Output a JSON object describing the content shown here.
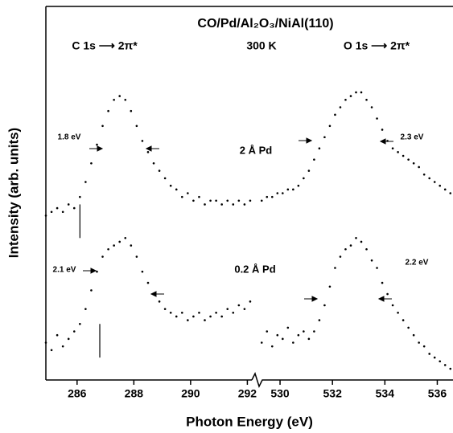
{
  "chart_data": {
    "type": "scatter",
    "title": "CO/Pd/Al₂O₃/NiAl(110)",
    "xlabel": "Photon Energy (eV)",
    "ylabel": "Intensity (arb. units)",
    "ylim": [
      0,
      100
    ],
    "annotations": [
      "C 1s ⟶ 2π*",
      "300 K",
      "O 1s ⟶ 2π*",
      "1.8 eV",
      "2 Å Pd",
      "2.3 eV",
      "0.2 Å Pd",
      "2.1 eV",
      "2.2 eV"
    ],
    "panels": [
      {
        "xlim": [
          284.9,
          292.3
        ],
        "xticks": [
          286,
          288,
          290,
          292
        ],
        "x": [
          284.9,
          285.1,
          285.3,
          285.5,
          285.7,
          285.9,
          286.1,
          286.3,
          286.5,
          286.7,
          286.9,
          287.1,
          287.3,
          287.5,
          287.7,
          287.9,
          288.1,
          288.3,
          288.5,
          288.7,
          288.9,
          289.1,
          289.3,
          289.5,
          289.7,
          289.9,
          290.1,
          290.3,
          290.5,
          290.7,
          290.9,
          291.1,
          291.3,
          291.5,
          291.7,
          291.9,
          292.1
        ],
        "series": [
          {
            "name": "2 Å Pd",
            "color": "#000000",
            "values": [
              44,
              45,
              46,
              45,
              47,
              46,
              49,
              53,
              58,
              63,
              68,
              72,
              75,
              76,
              75,
              72,
              68,
              64,
              61,
              58,
              56,
              54,
              52,
              51,
              49,
              50,
              48,
              49,
              47,
              48,
              48,
              47,
              48,
              47,
              48,
              47,
              48
            ]
          },
          {
            "name": "0.2 Å Pd",
            "color": "#000000",
            "values": [
              10,
              8,
              12,
              9,
              11,
              13,
              15,
              19,
              24,
              29,
              33,
              35,
              36,
              37,
              38,
              36,
              33,
              29,
              26,
              23,
              21,
              19,
              18,
              17,
              18,
              16,
              17,
              18,
              16,
              17,
              18,
              17,
              19,
              18,
              20,
              19,
              21
            ]
          }
        ],
        "markers": [
          {
            "x": 286.1,
            "y0": 38,
            "y1": 47
          },
          {
            "x": 286.8,
            "y0": 6,
            "y1": 15
          }
        ]
      },
      {
        "xlim": [
          529.2,
          536.6
        ],
        "xticks": [
          530,
          532,
          534,
          536
        ],
        "x": [
          529.3,
          529.5,
          529.7,
          529.9,
          530.1,
          530.3,
          530.5,
          530.7,
          530.9,
          531.1,
          531.3,
          531.5,
          531.7,
          531.9,
          532.1,
          532.3,
          532.5,
          532.7,
          532.9,
          533.1,
          533.3,
          533.5,
          533.7,
          533.9,
          534.1,
          534.3,
          534.5,
          534.7,
          534.9,
          535.1,
          535.3,
          535.5,
          535.7,
          535.9,
          536.1,
          536.3,
          536.5
        ],
        "series": [
          {
            "name": "2 Å Pd",
            "color": "#000000",
            "values": [
              48,
              49,
              49,
              50,
              50,
              51,
              51,
              52,
              54,
              56,
              59,
              62,
              65,
              68,
              71,
              73,
              75,
              76,
              77,
              77,
              75,
              73,
              70,
              67,
              64,
              62,
              61,
              60,
              59,
              58,
              57,
              55,
              54,
              53,
              52,
              51,
              50
            ]
          },
          {
            "name": "0.2 Å Pd",
            "color": "#000000",
            "values": [
              10,
              13,
              9,
              12,
              11,
              14,
              10,
              12,
              13,
              11,
              13,
              16,
              20,
              25,
              30,
              33,
              35,
              36,
              38,
              37,
              35,
              32,
              30,
              26,
              23,
              20,
              18,
              16,
              14,
              12,
              10,
              9,
              7,
              6,
              5,
              4,
              3
            ]
          }
        ]
      }
    ]
  }
}
